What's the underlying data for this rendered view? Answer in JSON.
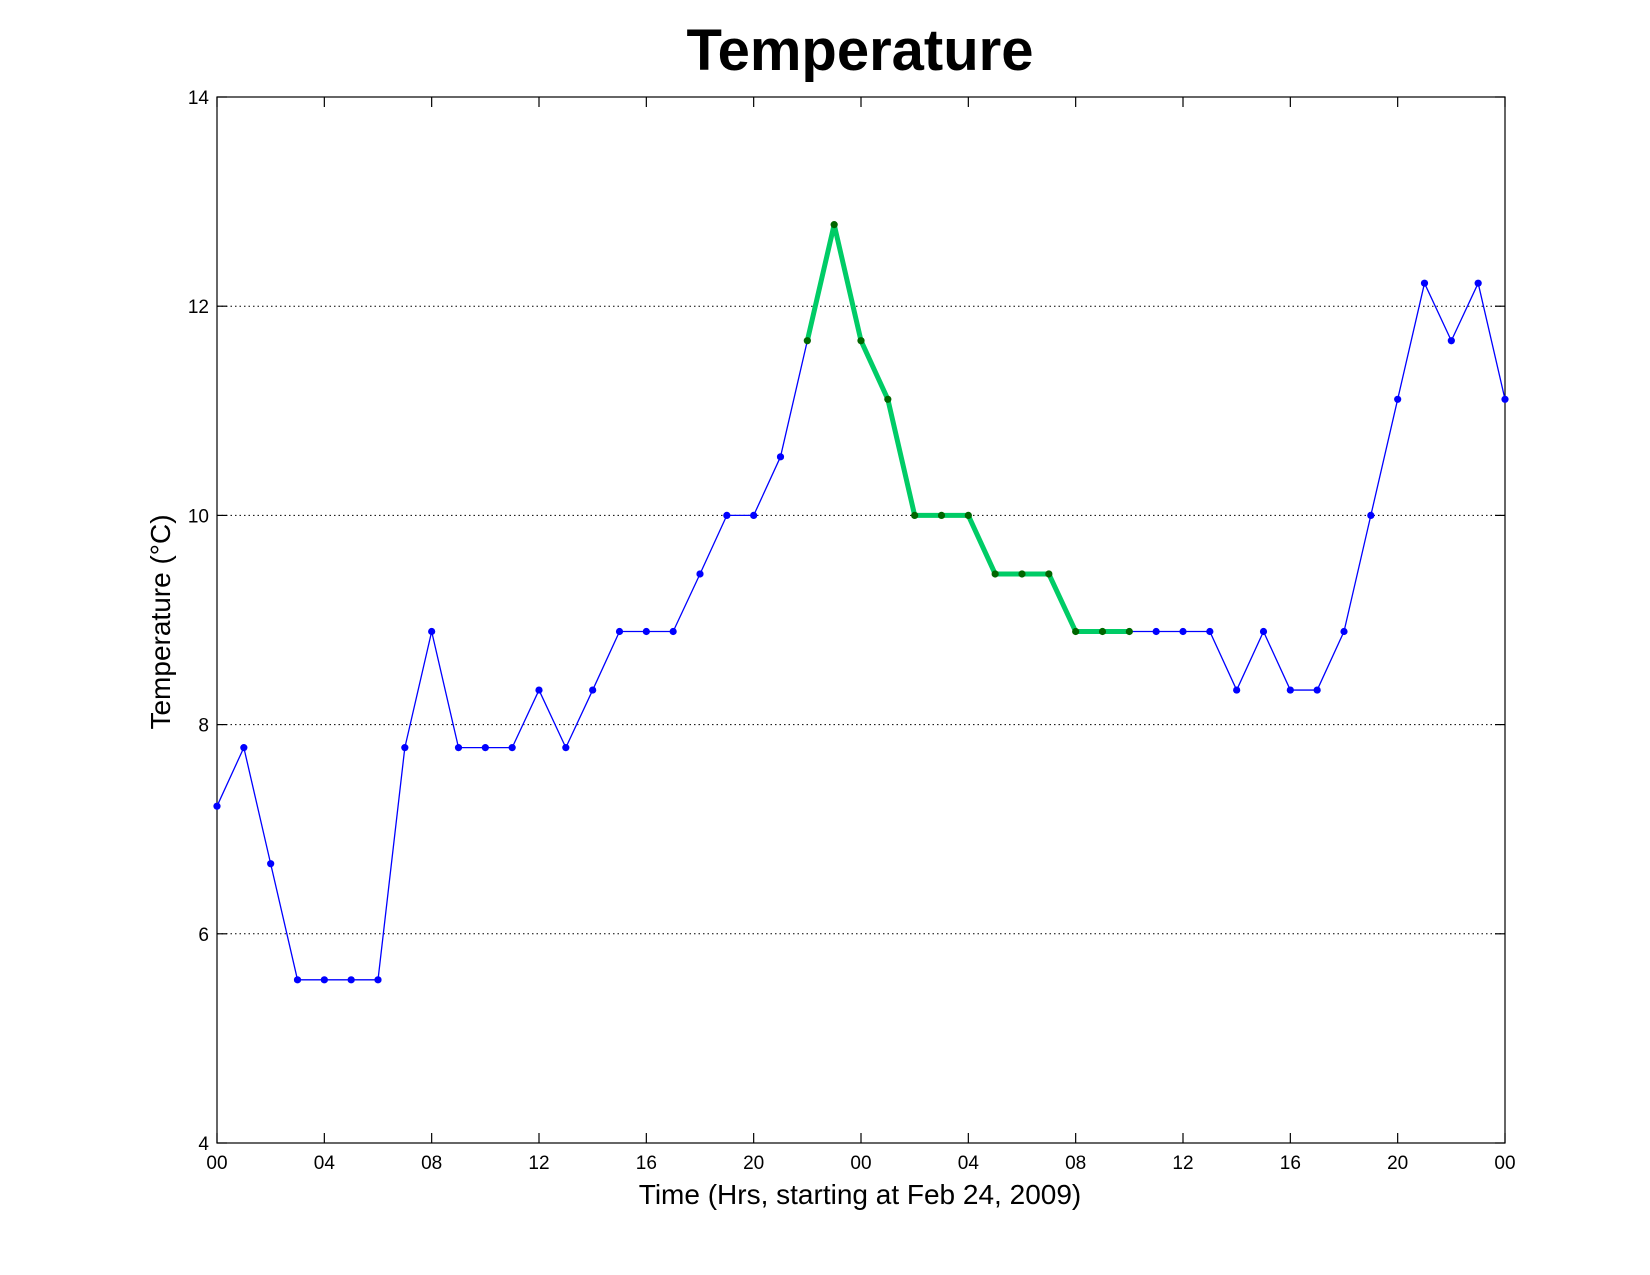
{
  "chart_data": {
    "type": "line",
    "title": "Temperature",
    "xlabel": "Time (Hrs, starting at Feb 24, 2009)",
    "ylabel": "Temperature (°C)",
    "xlim": [
      0,
      48
    ],
    "ylim": [
      4,
      14
    ],
    "xticks": [
      0,
      4,
      8,
      12,
      16,
      20,
      24,
      28,
      32,
      36,
      40,
      44,
      48
    ],
    "xtick_labels": [
      "00",
      "04",
      "08",
      "12",
      "16",
      "20",
      "00",
      "04",
      "08",
      "12",
      "16",
      "20",
      "00"
    ],
    "yticks": [
      4,
      6,
      8,
      10,
      12,
      14
    ],
    "ytick_labels": [
      "4",
      "6",
      "8",
      "10",
      "12",
      "14"
    ],
    "grid": "y-dotted",
    "colors": {
      "line": "#0000ff",
      "marker": "#0000ff",
      "highlight_line": "#00cc66",
      "highlight_marker": "#006600"
    },
    "series": [
      {
        "x": [
          0,
          1,
          2,
          3,
          4,
          5,
          6,
          7,
          8,
          9,
          10,
          11,
          12,
          13,
          14,
          15,
          16,
          17,
          18,
          19,
          20,
          21,
          22,
          23,
          24,
          25,
          26,
          27,
          28,
          29,
          30,
          31,
          32,
          33,
          34,
          35,
          36,
          37,
          38,
          39,
          40,
          41,
          42,
          43,
          44,
          45,
          46,
          47,
          48
        ],
        "values": [
          7.22,
          7.78,
          6.67,
          5.56,
          5.56,
          5.56,
          5.56,
          7.78,
          8.89,
          7.78,
          7.78,
          7.78,
          8.33,
          7.78,
          8.33,
          8.89,
          8.89,
          8.89,
          9.44,
          10.0,
          10.0,
          10.56,
          11.67,
          12.78,
          11.67,
          11.11,
          10.0,
          10.0,
          10.0,
          9.44,
          9.44,
          9.44,
          8.89,
          8.89,
          8.89,
          8.89,
          8.89,
          8.89,
          8.33,
          8.89,
          8.33,
          8.33,
          8.89,
          10.0,
          11.11,
          12.22,
          11.67,
          12.22,
          11.11
        ]
      }
    ],
    "highlight_range": [
      22,
      34
    ]
  }
}
